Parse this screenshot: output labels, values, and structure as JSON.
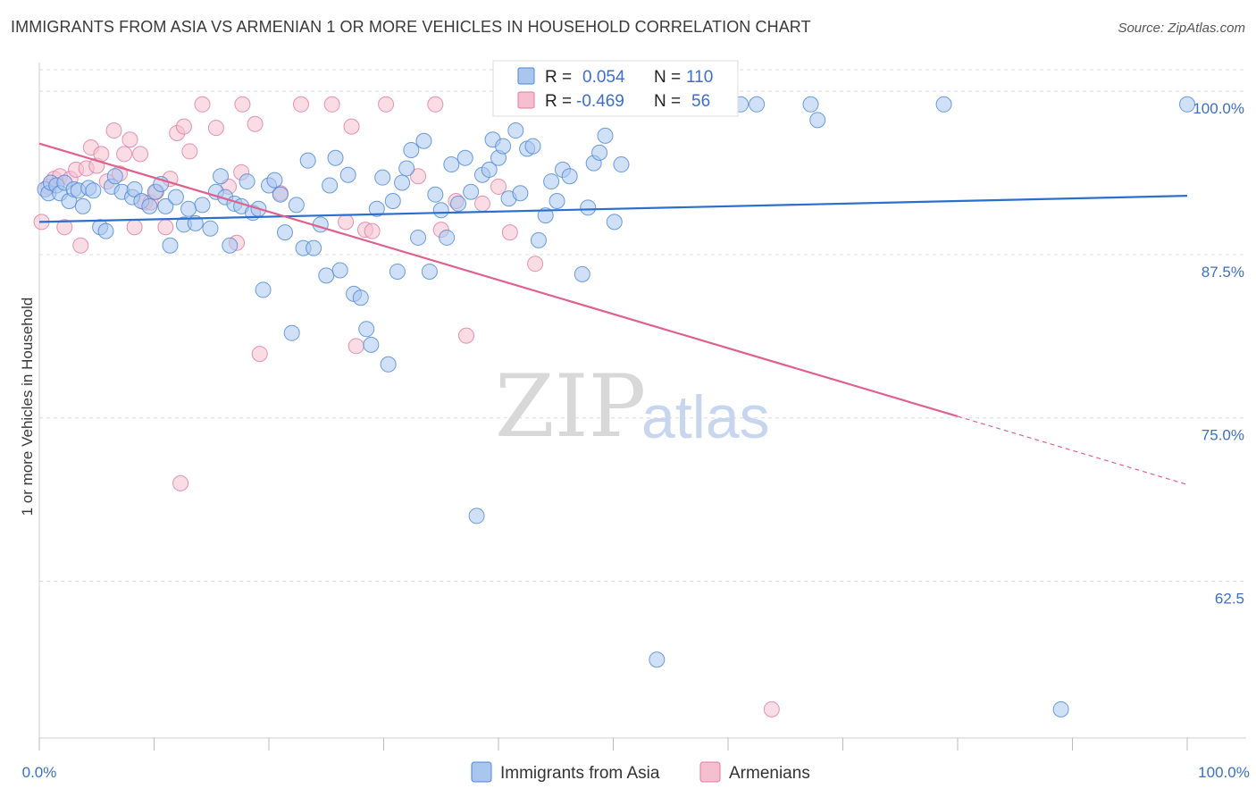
{
  "header": {
    "title": "IMMIGRANTS FROM ASIA VS ARMENIAN 1 OR MORE VEHICLES IN HOUSEHOLD CORRELATION CHART",
    "source": "Source: ZipAtlas.com"
  },
  "watermark": {
    "zip": "ZIP",
    "atlas": "atlas"
  },
  "colors": {
    "blue_fill": "#a9c6ee",
    "blue_stroke": "#4a86d6",
    "blue_line": "#2b6fce",
    "pink_fill": "#f6bfd0",
    "pink_stroke": "#e07ba0",
    "pink_line": "#e0608d",
    "grid": "#dcdcdc",
    "axis_text": "#3b6fc9"
  },
  "chart_data": {
    "type": "scatter",
    "title": "IMMIGRANTS FROM ASIA VS ARMENIAN 1 OR MORE VEHICLES IN HOUSEHOLD CORRELATION CHART",
    "xlabel": "",
    "ylabel": "1 or more Vehicles in Household",
    "xlim": [
      0,
      100
    ],
    "ylim": [
      50.5,
      102.2
    ],
    "x_tick_labels": [
      "0.0%",
      "100.0%"
    ],
    "y_ticks": [
      100.0,
      87.5,
      75.0,
      62.5
    ],
    "y_tick_labels": [
      "100.0%",
      "87.5%",
      "75.0%",
      62.5
    ],
    "grid": "horizontal dashed",
    "legend_position": "top-center",
    "stats": [
      {
        "series": "Immigrants from Asia",
        "r_label": "R =",
        "r": "0.054",
        "n_label": "N =",
        "n": "110"
      },
      {
        "series": "Armenians",
        "r_label": "R =",
        "r": "-0.469",
        "n_label": "N =",
        "n": "56"
      }
    ],
    "series": [
      {
        "name": "Immigrants from Asia",
        "color": "#a9c6ee",
        "trend": {
          "x": [
            0,
            100
          ],
          "y": [
            90.0,
            92.0
          ]
        },
        "points": [
          [
            0.5,
            92.5
          ],
          [
            0.8,
            92.2
          ],
          [
            1.0,
            93.0
          ],
          [
            1.5,
            92.8
          ],
          [
            1.8,
            92.2
          ],
          [
            2.2,
            93.0
          ],
          [
            2.6,
            91.6
          ],
          [
            3.0,
            92.5
          ],
          [
            3.4,
            92.4
          ],
          [
            3.8,
            91.2
          ],
          [
            4.3,
            92.6
          ],
          [
            4.7,
            92.4
          ],
          [
            5.3,
            89.6
          ],
          [
            5.8,
            89.3
          ],
          [
            6.3,
            92.7
          ],
          [
            6.6,
            93.5
          ],
          [
            7.2,
            92.3
          ],
          [
            8.1,
            91.9
          ],
          [
            8.3,
            92.5
          ],
          [
            8.9,
            91.6
          ],
          [
            9.6,
            91.2
          ],
          [
            10.1,
            92.3
          ],
          [
            10.6,
            92.9
          ],
          [
            11.0,
            91.2
          ],
          [
            11.4,
            88.2
          ],
          [
            11.9,
            91.9
          ],
          [
            12.6,
            89.8
          ],
          [
            13.0,
            91.0
          ],
          [
            13.6,
            89.9
          ],
          [
            14.2,
            91.3
          ],
          [
            14.9,
            89.5
          ],
          [
            15.4,
            92.3
          ],
          [
            15.8,
            93.5
          ],
          [
            16.2,
            91.9
          ],
          [
            16.6,
            88.2
          ],
          [
            17.0,
            91.4
          ],
          [
            17.6,
            91.2
          ],
          [
            18.1,
            93.1
          ],
          [
            18.6,
            90.7
          ],
          [
            19.1,
            91.0
          ],
          [
            19.5,
            84.8
          ],
          [
            20.0,
            92.8
          ],
          [
            20.5,
            93.2
          ],
          [
            21.0,
            92.1
          ],
          [
            21.4,
            89.2
          ],
          [
            22.0,
            81.5
          ],
          [
            22.4,
            91.3
          ],
          [
            23.0,
            88.0
          ],
          [
            23.4,
            94.7
          ],
          [
            23.9,
            88.0
          ],
          [
            24.5,
            89.8
          ],
          [
            25.0,
            85.9
          ],
          [
            25.3,
            92.8
          ],
          [
            25.8,
            94.9
          ],
          [
            26.2,
            86.3
          ],
          [
            26.9,
            93.6
          ],
          [
            27.4,
            84.5
          ],
          [
            28.0,
            84.2
          ],
          [
            28.5,
            81.8
          ],
          [
            28.9,
            80.6
          ],
          [
            29.4,
            91.0
          ],
          [
            29.9,
            93.4
          ],
          [
            30.4,
            79.1
          ],
          [
            30.8,
            91.6
          ],
          [
            31.2,
            86.2
          ],
          [
            31.6,
            93.0
          ],
          [
            32.0,
            94.1
          ],
          [
            32.4,
            95.5
          ],
          [
            33.0,
            88.8
          ],
          [
            33.5,
            96.2
          ],
          [
            34.0,
            86.2
          ],
          [
            34.5,
            92.1
          ],
          [
            35.0,
            90.9
          ],
          [
            35.5,
            88.8
          ],
          [
            35.9,
            94.4
          ],
          [
            36.5,
            91.4
          ],
          [
            37.1,
            94.9
          ],
          [
            37.6,
            92.3
          ],
          [
            38.1,
            67.5
          ],
          [
            38.6,
            93.6
          ],
          [
            39.2,
            94.0
          ],
          [
            39.5,
            96.3
          ],
          [
            40.0,
            94.9
          ],
          [
            40.4,
            95.8
          ],
          [
            40.9,
            91.8
          ],
          [
            41.5,
            97.0
          ],
          [
            41.9,
            92.2
          ],
          [
            42.5,
            95.6
          ],
          [
            43.0,
            95.8
          ],
          [
            43.5,
            88.6
          ],
          [
            44.1,
            90.5
          ],
          [
            44.6,
            93.1
          ],
          [
            45.1,
            91.6
          ],
          [
            45.6,
            94.0
          ],
          [
            46.2,
            93.5
          ],
          [
            47.3,
            86.0
          ],
          [
            47.8,
            91.1
          ],
          [
            48.3,
            94.5
          ],
          [
            48.8,
            95.3
          ],
          [
            49.3,
            96.6
          ],
          [
            50.1,
            90.0
          ],
          [
            50.7,
            94.4
          ],
          [
            53.8,
            56.5
          ],
          [
            61.1,
            99.0
          ],
          [
            62.5,
            99.0
          ],
          [
            67.2,
            99.0
          ],
          [
            67.8,
            97.8
          ],
          [
            78.8,
            99.0
          ],
          [
            89.0,
            52.7
          ],
          [
            100.0,
            99.0
          ]
        ]
      },
      {
        "name": "Armenians",
        "color": "#f6bfd0",
        "trend": {
          "x": [
            0,
            100
          ],
          "y": [
            96.0,
            69.9
          ]
        },
        "points": [
          [
            0.2,
            90.0
          ],
          [
            0.8,
            92.7
          ],
          [
            1.3,
            93.3
          ],
          [
            1.8,
            93.5
          ],
          [
            2.2,
            89.6
          ],
          [
            2.7,
            93.3
          ],
          [
            3.2,
            94.0
          ],
          [
            3.6,
            88.2
          ],
          [
            4.1,
            94.1
          ],
          [
            4.5,
            95.7
          ],
          [
            5.0,
            94.3
          ],
          [
            5.4,
            95.2
          ],
          [
            5.9,
            93.1
          ],
          [
            6.5,
            97.0
          ],
          [
            7.0,
            93.7
          ],
          [
            7.4,
            95.2
          ],
          [
            7.9,
            96.3
          ],
          [
            8.3,
            89.6
          ],
          [
            8.8,
            95.2
          ],
          [
            9.2,
            91.5
          ],
          [
            9.7,
            91.5
          ],
          [
            10.2,
            92.3
          ],
          [
            11.0,
            89.6
          ],
          [
            11.4,
            93.3
          ],
          [
            12.0,
            96.8
          ],
          [
            12.3,
            70.0
          ],
          [
            12.6,
            97.3
          ],
          [
            13.1,
            95.4
          ],
          [
            14.2,
            99.0
          ],
          [
            15.4,
            97.2
          ],
          [
            16.5,
            92.7
          ],
          [
            17.2,
            88.4
          ],
          [
            17.6,
            93.8
          ],
          [
            18.8,
            97.5
          ],
          [
            19.2,
            79.9
          ],
          [
            21.0,
            92.2
          ],
          [
            22.8,
            99.0
          ],
          [
            25.5,
            99.0
          ],
          [
            26.7,
            90.0
          ],
          [
            27.2,
            97.3
          ],
          [
            27.6,
            80.5
          ],
          [
            28.4,
            89.4
          ],
          [
            29.0,
            89.3
          ],
          [
            30.2,
            99.0
          ],
          [
            33.0,
            93.5
          ],
          [
            34.5,
            99.0
          ],
          [
            35.0,
            89.4
          ],
          [
            36.3,
            91.6
          ],
          [
            37.2,
            81.3
          ],
          [
            38.6,
            91.4
          ],
          [
            40.0,
            92.7
          ],
          [
            41.0,
            89.2
          ],
          [
            43.2,
            86.8
          ],
          [
            63.8,
            52.7
          ],
          [
            46.2,
            99.0
          ],
          [
            17.7,
            99.0
          ]
        ]
      }
    ]
  },
  "legend": {
    "series": [
      {
        "name": "Immigrants from Asia",
        "color": "#a9c6ee"
      },
      {
        "name": "Armenians",
        "color": "#f6bfd0"
      }
    ]
  }
}
